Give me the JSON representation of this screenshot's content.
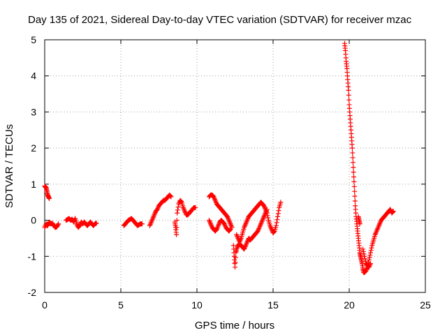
{
  "chart_data": {
    "type": "scatter",
    "title": "Day 135 of 2021, Sidereal Day-to-day VTEC variation (SDTVAR) for receiver mzac",
    "xlabel": "GPS time / hours",
    "ylabel": "SDTVAR / TECUs",
    "xlim": [
      0,
      25
    ],
    "ylim": [
      -2,
      5
    ],
    "xticks": [
      "0",
      "5",
      "10",
      "15",
      "20",
      "25"
    ],
    "yticks": [
      "-2",
      "-1",
      "0",
      "1",
      "2",
      "3",
      "4",
      "5"
    ],
    "grid": true,
    "marker": "plus",
    "color": "#ff0000",
    "series": [
      {
        "name": "SDTVAR",
        "segments": [
          [
            [
              0.0,
              0.95
            ],
            [
              0.05,
              0.92
            ],
            [
              0.1,
              0.9
            ],
            [
              0.15,
              0.8
            ],
            [
              0.2,
              0.7
            ],
            [
              0.25,
              0.65
            ],
            [
              0.3,
              0.6
            ]
          ],
          [
            [
              0.0,
              -0.2
            ],
            [
              0.1,
              -0.1
            ],
            [
              0.2,
              -0.15
            ],
            [
              0.3,
              -0.05
            ],
            [
              0.4,
              -0.1
            ],
            [
              0.5,
              -0.08
            ],
            [
              0.6,
              -0.15
            ],
            [
              0.7,
              -0.2
            ],
            [
              0.8,
              -0.18
            ],
            [
              0.9,
              -0.1
            ]
          ],
          [
            [
              1.4,
              0.0
            ],
            [
              1.5,
              0.02
            ],
            [
              1.6,
              0.05
            ],
            [
              1.7,
              0.0
            ],
            [
              1.8,
              0.03
            ],
            [
              1.9,
              -0.05
            ],
            [
              2.0,
              0.05
            ],
            [
              2.1,
              -0.1
            ],
            [
              2.2,
              -0.2
            ],
            [
              2.3,
              -0.15
            ],
            [
              2.4,
              -0.05
            ],
            [
              2.5,
              -0.1
            ],
            [
              2.6,
              -0.05
            ],
            [
              2.7,
              -0.1
            ],
            [
              2.8,
              -0.15
            ],
            [
              2.9,
              -0.1
            ],
            [
              3.0,
              -0.05
            ],
            [
              3.1,
              -0.1
            ],
            [
              3.2,
              -0.15
            ],
            [
              3.3,
              -0.1
            ],
            [
              3.4,
              -0.08
            ]
          ],
          [
            [
              5.2,
              -0.15
            ],
            [
              5.3,
              -0.1
            ],
            [
              5.4,
              -0.05
            ],
            [
              5.5,
              0.0
            ],
            [
              5.6,
              0.02
            ],
            [
              5.7,
              0.05
            ],
            [
              5.8,
              0.0
            ],
            [
              5.9,
              -0.05
            ],
            [
              6.0,
              -0.1
            ],
            [
              6.1,
              -0.15
            ],
            [
              6.2,
              -0.12
            ],
            [
              6.3,
              -0.1
            ],
            [
              6.4,
              -0.1
            ]
          ],
          [
            [
              6.9,
              -0.15
            ],
            [
              7.0,
              -0.05
            ],
            [
              7.1,
              0.05
            ],
            [
              7.2,
              0.15
            ],
            [
              7.3,
              0.25
            ],
            [
              7.4,
              0.3
            ],
            [
              7.5,
              0.4
            ],
            [
              7.6,
              0.45
            ],
            [
              7.7,
              0.5
            ],
            [
              7.8,
              0.55
            ],
            [
              7.9,
              0.55
            ],
            [
              8.0,
              0.6
            ],
            [
              8.1,
              0.65
            ],
            [
              8.2,
              0.7
            ],
            [
              8.3,
              0.65
            ]
          ],
          [
            [
              8.55,
              -0.05
            ],
            [
              8.6,
              -0.2
            ],
            [
              8.65,
              -0.4
            ],
            [
              8.7,
              0.2
            ],
            [
              8.8,
              0.45
            ],
            [
              8.9,
              0.55
            ],
            [
              9.0,
              0.5
            ],
            [
              9.1,
              0.35
            ],
            [
              9.2,
              0.25
            ],
            [
              9.3,
              0.15
            ],
            [
              9.4,
              0.15
            ],
            [
              9.5,
              0.2
            ],
            [
              9.6,
              0.25
            ],
            [
              9.7,
              0.3
            ],
            [
              9.8,
              0.35
            ],
            [
              9.9,
              0.35
            ]
          ],
          [
            [
              10.8,
              0.65
            ],
            [
              10.9,
              0.7
            ],
            [
              11.0,
              0.7
            ],
            [
              11.1,
              0.65
            ],
            [
              11.2,
              0.55
            ],
            [
              11.3,
              0.45
            ],
            [
              11.4,
              0.4
            ],
            [
              11.5,
              0.35
            ],
            [
              11.6,
              0.3
            ],
            [
              11.7,
              0.25
            ],
            [
              11.8,
              0.2
            ],
            [
              11.9,
              0.15
            ],
            [
              12.0,
              0.1
            ],
            [
              12.1,
              0.0
            ],
            [
              12.2,
              -0.1
            ],
            [
              12.3,
              -0.2
            ]
          ],
          [
            [
              10.8,
              0.0
            ],
            [
              10.9,
              -0.1
            ],
            [
              11.0,
              -0.2
            ],
            [
              11.1,
              -0.25
            ],
            [
              11.2,
              -0.3
            ],
            [
              11.3,
              -0.25
            ],
            [
              11.4,
              -0.15
            ],
            [
              11.5,
              -0.05
            ],
            [
              11.6,
              0.0
            ],
            [
              11.7,
              -0.05
            ],
            [
              11.8,
              -0.1
            ],
            [
              11.9,
              -0.2
            ],
            [
              12.0,
              -0.25
            ],
            [
              12.1,
              -0.3
            ],
            [
              12.2,
              -0.25
            ]
          ],
          [
            [
              12.4,
              -0.7
            ],
            [
              12.45,
              -1.0
            ],
            [
              12.5,
              -1.3
            ],
            [
              12.55,
              -0.9
            ],
            [
              12.6,
              -0.8
            ],
            [
              12.7,
              -0.7
            ],
            [
              12.8,
              -0.65
            ],
            [
              12.9,
              -0.7
            ],
            [
              13.0,
              -0.75
            ],
            [
              13.1,
              -0.8
            ],
            [
              13.2,
              -0.7
            ],
            [
              13.3,
              -0.6
            ],
            [
              13.4,
              -0.5
            ],
            [
              13.5,
              -0.55
            ],
            [
              13.6,
              -0.5
            ],
            [
              13.7,
              -0.45
            ],
            [
              13.8,
              -0.4
            ],
            [
              13.9,
              -0.35
            ],
            [
              14.0,
              -0.3
            ],
            [
              14.1,
              -0.2
            ],
            [
              14.2,
              -0.1
            ],
            [
              14.3,
              0.0
            ],
            [
              14.4,
              0.1
            ],
            [
              14.5,
              0.2
            ],
            [
              14.6,
              0.3
            ]
          ],
          [
            [
              12.6,
              -0.4
            ],
            [
              12.7,
              -0.5
            ],
            [
              12.8,
              -0.6
            ],
            [
              12.9,
              -0.5
            ],
            [
              13.0,
              -0.35
            ],
            [
              13.1,
              -0.2
            ],
            [
              13.2,
              -0.1
            ],
            [
              13.3,
              0.0
            ],
            [
              13.4,
              0.1
            ],
            [
              13.5,
              0.15
            ],
            [
              13.6,
              0.2
            ],
            [
              13.7,
              0.25
            ],
            [
              13.8,
              0.3
            ],
            [
              13.9,
              0.35
            ],
            [
              14.0,
              0.4
            ],
            [
              14.1,
              0.45
            ],
            [
              14.2,
              0.5
            ],
            [
              14.3,
              0.45
            ],
            [
              14.4,
              0.4
            ],
            [
              14.5,
              0.3
            ],
            [
              14.6,
              0.2
            ],
            [
              14.7,
              0.0
            ],
            [
              14.8,
              -0.15
            ],
            [
              14.9,
              -0.25
            ],
            [
              15.0,
              -0.35
            ],
            [
              15.1,
              -0.3
            ],
            [
              15.2,
              -0.15
            ],
            [
              15.3,
              0.1
            ],
            [
              15.4,
              0.35
            ],
            [
              15.5,
              0.5
            ]
          ],
          [
            [
              19.7,
              4.9
            ],
            [
              19.75,
              4.7
            ],
            [
              19.8,
              4.4
            ],
            [
              19.85,
              4.2
            ],
            [
              19.9,
              3.9
            ],
            [
              19.95,
              3.6
            ],
            [
              20.0,
              3.2
            ],
            [
              20.05,
              2.9
            ],
            [
              20.1,
              2.6
            ],
            [
              20.15,
              2.3
            ],
            [
              20.2,
              2.0
            ],
            [
              20.25,
              1.6
            ],
            [
              20.3,
              1.2
            ],
            [
              20.35,
              0.8
            ],
            [
              20.4,
              0.4
            ],
            [
              20.45,
              0.1
            ],
            [
              20.5,
              -0.1
            ],
            [
              20.55,
              -0.3
            ],
            [
              20.6,
              -0.5
            ],
            [
              20.65,
              -0.7
            ],
            [
              20.7,
              -0.9
            ],
            [
              20.75,
              -1.0
            ],
            [
              20.8,
              -1.1
            ],
            [
              20.85,
              -1.2
            ],
            [
              20.9,
              -1.35
            ],
            [
              20.95,
              -1.45
            ],
            [
              21.0,
              -1.45
            ],
            [
              21.1,
              -1.4
            ],
            [
              21.2,
              -1.3
            ],
            [
              21.3,
              -1.1
            ],
            [
              21.4,
              -0.9
            ],
            [
              21.5,
              -0.7
            ],
            [
              21.6,
              -0.55
            ],
            [
              21.7,
              -0.4
            ],
            [
              21.8,
              -0.3
            ],
            [
              21.9,
              -0.2
            ],
            [
              22.0,
              -0.1
            ],
            [
              22.1,
              0.0
            ],
            [
              22.2,
              0.05
            ],
            [
              22.3,
              0.1
            ],
            [
              22.4,
              0.15
            ],
            [
              22.5,
              0.2
            ],
            [
              22.6,
              0.25
            ],
            [
              22.7,
              0.3
            ],
            [
              22.8,
              0.2
            ],
            [
              22.9,
              0.25
            ]
          ],
          [
            [
              20.9,
              -0.8
            ],
            [
              21.0,
              -1.0
            ],
            [
              21.1,
              -1.2
            ],
            [
              21.2,
              -1.25
            ],
            [
              21.3,
              -1.3
            ],
            [
              21.4,
              -1.2
            ]
          ],
          [
            [
              20.6,
              0.1
            ],
            [
              20.65,
              0.0
            ],
            [
              20.7,
              -0.1
            ]
          ]
        ]
      }
    ]
  }
}
